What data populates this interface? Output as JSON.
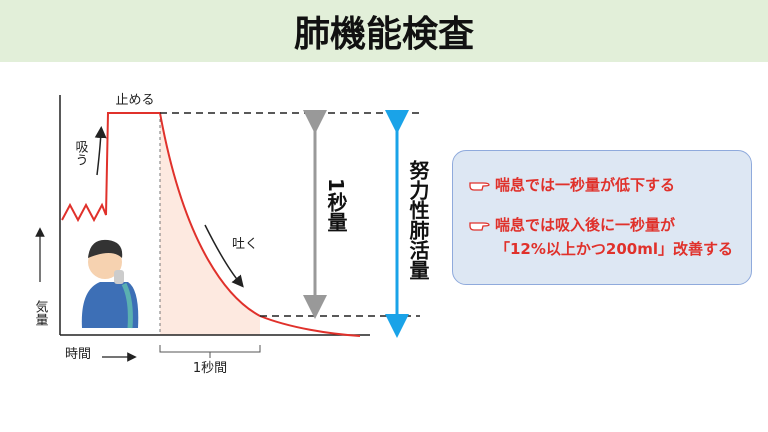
{
  "header": {
    "title": "肺機能検査"
  },
  "diagram": {
    "hold_label": "止める",
    "inhale_label": "吸う",
    "exhale_label": "吐く",
    "y_axis_label": "気量",
    "x_axis_label": "時間",
    "one_second_label": "1秒間",
    "fev1_label": "1秒量",
    "fvc_label": "努力性肺活量"
  },
  "note_box": {
    "items": [
      [
        "喘息では一秒量が低下する"
      ],
      [
        "喘息では吸入後に一秒量が",
        "「12%以上かつ200ml」改善する"
      ]
    ]
  }
}
